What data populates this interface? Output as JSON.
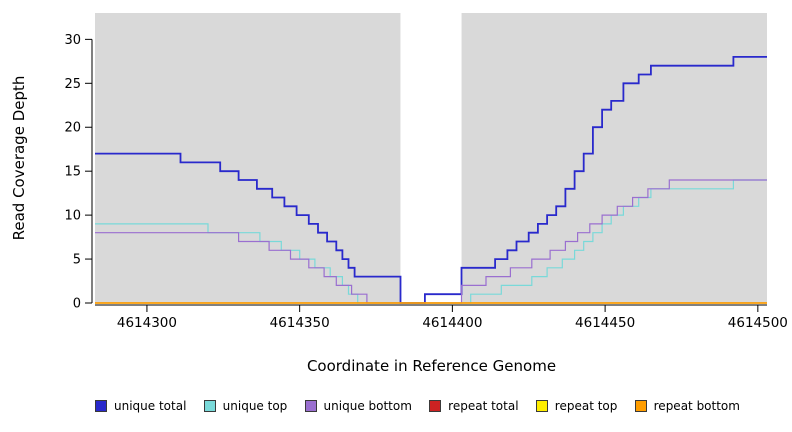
{
  "chart_data": {
    "type": "line",
    "subtype": "step-coverage",
    "title": "",
    "xlabel": "Coordinate in Reference Genome",
    "ylabel": "Read Coverage Depth",
    "xlim": [
      4614283,
      4614503
    ],
    "ylim": [
      0,
      33
    ],
    "xticks": [
      4614300,
      4614350,
      4614400,
      4614450,
      4614500
    ],
    "yticks": [
      0,
      5,
      10,
      15,
      20,
      25,
      30
    ],
    "grid": false,
    "shaded_region_color": "#d9d9d9",
    "background_regions": [
      {
        "x0": 4614283,
        "x1": 4614383
      },
      {
        "x0": 4614403,
        "x1": 4614503
      }
    ],
    "series": [
      {
        "key": "unique-total",
        "name": "unique total",
        "color": "#2929cc",
        "width": 1.8,
        "steps": [
          [
            4614283,
            17
          ],
          [
            4614311,
            16
          ],
          [
            4614324,
            15
          ],
          [
            4614330,
            14
          ],
          [
            4614336,
            13
          ],
          [
            4614341,
            12
          ],
          [
            4614345,
            11
          ],
          [
            4614349,
            10
          ],
          [
            4614353,
            9
          ],
          [
            4614356,
            8
          ],
          [
            4614359,
            7
          ],
          [
            4614362,
            6
          ],
          [
            4614364,
            5
          ],
          [
            4614366,
            4
          ],
          [
            4614368,
            3
          ],
          [
            4614383,
            0
          ],
          [
            4614391,
            1
          ],
          [
            4614403,
            4
          ],
          [
            4614414,
            5
          ],
          [
            4614418,
            6
          ],
          [
            4614421,
            7
          ],
          [
            4614425,
            8
          ],
          [
            4614428,
            9
          ],
          [
            4614431,
            10
          ],
          [
            4614434,
            11
          ],
          [
            4614437,
            13
          ],
          [
            4614440,
            15
          ],
          [
            4614443,
            17
          ],
          [
            4614446,
            20
          ],
          [
            4614449,
            22
          ],
          [
            4614452,
            23
          ],
          [
            4614456,
            25
          ],
          [
            4614461,
            26
          ],
          [
            4614465,
            27
          ],
          [
            4614492,
            28
          ]
        ]
      },
      {
        "key": "unique-top",
        "name": "unique top",
        "color": "#79d9d9",
        "width": 1.2,
        "steps": [
          [
            4614283,
            9
          ],
          [
            4614320,
            8
          ],
          [
            4614337,
            7
          ],
          [
            4614344,
            6
          ],
          [
            4614350,
            5
          ],
          [
            4614355,
            4
          ],
          [
            4614360,
            3
          ],
          [
            4614364,
            2
          ],
          [
            4614366,
            1
          ],
          [
            4614369,
            0
          ],
          [
            4614406,
            1
          ],
          [
            4614416,
            2
          ],
          [
            4614426,
            3
          ],
          [
            4614431,
            4
          ],
          [
            4614436,
            5
          ],
          [
            4614440,
            6
          ],
          [
            4614443,
            7
          ],
          [
            4614446,
            8
          ],
          [
            4614449,
            9
          ],
          [
            4614452,
            10
          ],
          [
            4614456,
            11
          ],
          [
            4614461,
            12
          ],
          [
            4614465,
            13
          ],
          [
            4614492,
            14
          ]
        ]
      },
      {
        "key": "unique-bottom",
        "name": "unique bottom",
        "color": "#9a6fd0",
        "width": 1.2,
        "steps": [
          [
            4614283,
            8
          ],
          [
            4614330,
            7
          ],
          [
            4614340,
            6
          ],
          [
            4614347,
            5
          ],
          [
            4614353,
            4
          ],
          [
            4614358,
            3
          ],
          [
            4614362,
            2
          ],
          [
            4614367,
            1
          ],
          [
            4614372,
            0
          ],
          [
            4614403,
            2
          ],
          [
            4614411,
            3
          ],
          [
            4614419,
            4
          ],
          [
            4614426,
            5
          ],
          [
            4614432,
            6
          ],
          [
            4614437,
            7
          ],
          [
            4614441,
            8
          ],
          [
            4614445,
            9
          ],
          [
            4614449,
            10
          ],
          [
            4614454,
            11
          ],
          [
            4614459,
            12
          ],
          [
            4614464,
            13
          ],
          [
            4614471,
            14
          ]
        ]
      },
      {
        "key": "repeat-total",
        "name": "repeat total",
        "color": "#cc2222",
        "width": 1.2,
        "steps": [
          [
            4614283,
            0
          ]
        ]
      },
      {
        "key": "repeat-top",
        "name": "repeat top",
        "color": "#ffee00",
        "width": 1.2,
        "steps": [
          [
            4614283,
            0
          ]
        ]
      },
      {
        "key": "repeat-bottom",
        "name": "repeat bottom",
        "color": "#ff9d00",
        "width": 1.4,
        "steps": [
          [
            4614283,
            0
          ]
        ]
      }
    ],
    "legend": [
      {
        "label": "unique total",
        "color": "#2929cc"
      },
      {
        "label": "unique top",
        "color": "#79d9d9"
      },
      {
        "label": "unique bottom",
        "color": "#9a6fd0"
      },
      {
        "label": "repeat total",
        "color": "#cc2222"
      },
      {
        "label": "repeat top",
        "color": "#ffee00"
      },
      {
        "label": "repeat bottom",
        "color": "#ff9d00"
      }
    ],
    "legend_position": "bottom"
  }
}
